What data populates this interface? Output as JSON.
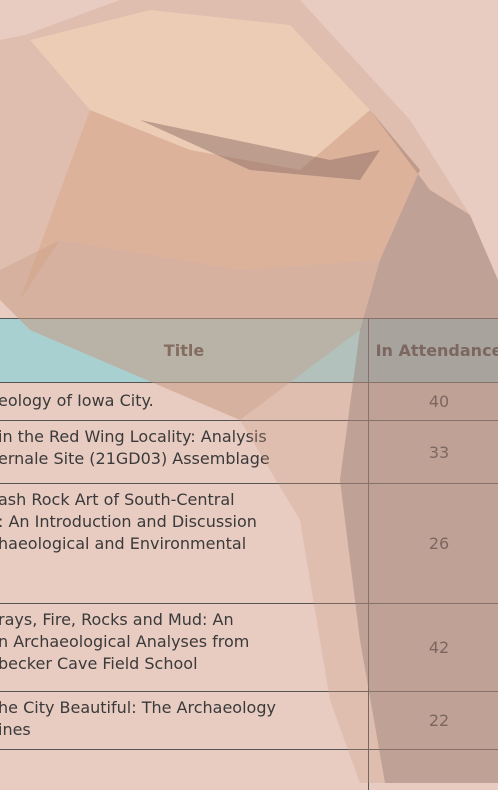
{
  "header": {
    "title": "Title",
    "attendance": "In Attendance"
  },
  "rows": [
    {
      "title": [
        "eology of Iowa City."
      ],
      "attendance": "40"
    },
    {
      "title": [
        "in the Red Wing Locality: Analysis",
        "ernale Site (21GD03) Assemblage"
      ],
      "attendance": "33"
    },
    {
      "title": [
        "ash Rock Art of South-Central",
        ": An Introduction and Discussion",
        "haeological and Environmental"
      ],
      "attendance": "26"
    },
    {
      "title": [
        "rays, Fire, Rocks and Mud: An",
        "n Archaeological Analyses from",
        "becker Cave Field School"
      ],
      "attendance": "42"
    },
    {
      "title": [
        "he City Beautiful: The Archaeology",
        "ines"
      ],
      "attendance": "22"
    }
  ]
}
